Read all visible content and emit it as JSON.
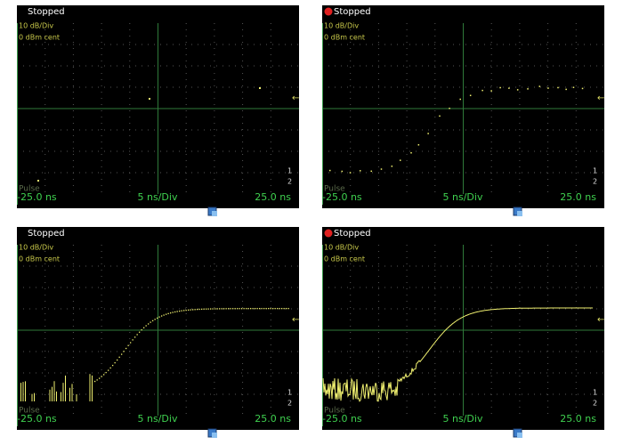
{
  "panels": [
    {
      "status": "Stopped",
      "recording": false,
      "scale": "10 dB/Div",
      "reference": "0 dBm cent",
      "trace_label": "Pulse",
      "x_start": "-25.0 ns",
      "x_div": "5 ns/Div",
      "x_end": "25.0 ns",
      "markers": [
        "1",
        "2"
      ]
    },
    {
      "status": "Stopped",
      "recording": true,
      "scale": "10 dB/Div",
      "reference": "0 dBm cent",
      "trace_label": "Pulse",
      "x_start": "-25.0 ns",
      "x_div": "5 ns/Div",
      "x_end": "25.0 ns",
      "markers": [
        "1",
        "2"
      ]
    },
    {
      "status": "Stopped",
      "recording": false,
      "scale": "10 dB/Div",
      "reference": "0 dBm cent",
      "trace_label": "Pulse",
      "x_start": "-25.0 ns",
      "x_div": "5 ns/Div",
      "x_end": "25.0 ns",
      "markers": [
        "1",
        "2"
      ]
    },
    {
      "status": "Stopped",
      "recording": true,
      "scale": "10 dB/Div",
      "reference": "0 dBm cent",
      "trace_label": "Pulse",
      "x_start": "-25.0 ns",
      "x_div": "5 ns/Div",
      "x_end": "25.0 ns",
      "markers": [
        "1",
        "2"
      ]
    }
  ]
}
